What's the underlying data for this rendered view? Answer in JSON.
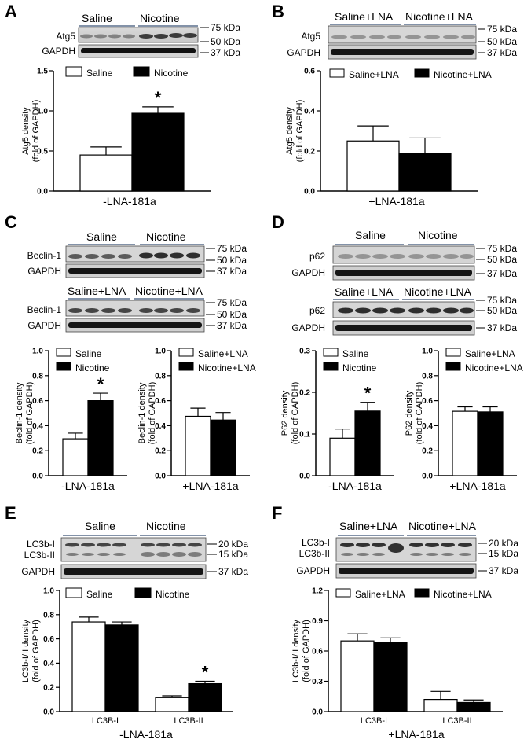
{
  "figure": {
    "panels": [
      {
        "letter": "A",
        "blots": [
          {
            "groups": [
              "Saline",
              "Nicotine"
            ],
            "bands": [
              "Atg5",
              "GAPDH"
            ],
            "markers": [
              "75 kDa",
              "50 kDa",
              "37 kDa"
            ]
          }
        ]
      },
      {
        "letter": "B",
        "blots": [
          {
            "groups": [
              "Saline+LNA",
              "Nicotine+LNA"
            ],
            "bands": [
              "Atg5",
              "GAPDH"
            ],
            "markers": [
              "75 kDa",
              "50 kDa",
              "37 kDa"
            ]
          }
        ]
      },
      {
        "letter": "C",
        "blots": [
          {
            "groups": [
              "Saline",
              "Nicotine"
            ],
            "bands": [
              "Beclin-1",
              "GAPDH"
            ],
            "markers": [
              "75 kDa",
              "50 kDa",
              "37 kDa"
            ]
          },
          {
            "groups": [
              "Saline+LNA",
              "Nicotine+LNA"
            ],
            "bands": [
              "Beclin-1",
              "GAPDH"
            ],
            "markers": [
              "75 kDa",
              "50 kDa",
              "37 kDa"
            ]
          }
        ]
      },
      {
        "letter": "D",
        "blots": [
          {
            "groups": [
              "Saline",
              "Nicotine"
            ],
            "bands": [
              "p62",
              "GAPDH"
            ],
            "markers": [
              "75 kDa",
              "50 kDa",
              "37 kDa"
            ]
          },
          {
            "groups": [
              "Saline+LNA",
              "Nicotine+LNA"
            ],
            "bands": [
              "p62",
              "GAPDH"
            ],
            "markers": [
              "75 kDa",
              "50 kDa",
              "37 kDa"
            ]
          }
        ]
      },
      {
        "letter": "E",
        "blots": [
          {
            "groups": [
              "Saline",
              "Nicotine"
            ],
            "bands": [
              "LC3b-I",
              "LC3b-II",
              "GAPDH"
            ],
            "markers": [
              "20 kDa",
              "15 kDa",
              "37 kDa"
            ]
          }
        ]
      },
      {
        "letter": "F",
        "blots": [
          {
            "groups": [
              "Saline+LNA",
              "Nicotine+LNA"
            ],
            "bands": [
              "LC3b-I",
              "LC3b-II",
              "GAPDH"
            ],
            "markers": [
              "20 kDa",
              "15 kDa",
              "37 kDa"
            ]
          }
        ]
      }
    ]
  },
  "chart_data": [
    {
      "panel": "A",
      "type": "bar",
      "title": "",
      "xlabel": "-LNA-181a",
      "ylabel": [
        "Atg5 density",
        "(fold of GAPDH)"
      ],
      "ylim": [
        0,
        1.5
      ],
      "yticks": [
        "0.0",
        "0.5",
        "1.0",
        "1.5"
      ],
      "legend": [
        "Saline",
        "Nicotine"
      ],
      "legend_position": "top",
      "categories": [
        ""
      ],
      "series": [
        {
          "name": "Saline",
          "values": [
            0.45
          ],
          "errors": [
            0.1
          ],
          "color": "#ffffff"
        },
        {
          "name": "Nicotine",
          "values": [
            0.97
          ],
          "errors": [
            0.08
          ],
          "color": "#000000"
        }
      ],
      "significance": [
        {
          "series": "Nicotine",
          "category": 0,
          "mark": "*"
        }
      ]
    },
    {
      "panel": "B",
      "type": "bar",
      "title": "",
      "xlabel": "+LNA-181a",
      "ylabel": [
        "Atg5 density",
        "(fold of GAPDH)"
      ],
      "ylim": [
        0,
        0.6
      ],
      "yticks": [
        "0.0",
        "0.2",
        "0.4",
        "0.6"
      ],
      "legend": [
        "Saline+LNA",
        "Nicotine+LNA"
      ],
      "legend_position": "top",
      "categories": [
        ""
      ],
      "series": [
        {
          "name": "Saline+LNA",
          "values": [
            0.25
          ],
          "errors": [
            0.075
          ],
          "color": "#ffffff"
        },
        {
          "name": "Nicotine+LNA",
          "values": [
            0.187
          ],
          "errors": [
            0.078
          ],
          "color": "#000000"
        }
      ],
      "significance": []
    },
    {
      "panel": "C-left",
      "type": "bar",
      "title": "",
      "xlabel": "-LNA-181a",
      "ylabel": [
        "Beclin-1 density",
        "(fold of GAPDH)"
      ],
      "ylim": [
        0,
        1.0
      ],
      "yticks": [
        "0.0",
        "0.2",
        "0.4",
        "0.6",
        "0.8",
        "1.0"
      ],
      "legend": [
        "Saline",
        "Nicotine"
      ],
      "legend_position": "top",
      "categories": [
        ""
      ],
      "series": [
        {
          "name": "Saline",
          "values": [
            0.295
          ],
          "errors": [
            0.045
          ],
          "color": "#ffffff"
        },
        {
          "name": "Nicotine",
          "values": [
            0.6
          ],
          "errors": [
            0.06
          ],
          "color": "#000000"
        }
      ],
      "significance": [
        {
          "series": "Nicotine",
          "category": 0,
          "mark": "*"
        }
      ]
    },
    {
      "panel": "C-right",
      "type": "bar",
      "title": "",
      "xlabel": "+LNA-181a",
      "ylabel": [
        "Beclin-1 density",
        "(fold of GAPDH)"
      ],
      "ylim": [
        0,
        1.0
      ],
      "yticks": [
        "0.0",
        "0.2",
        "0.4",
        "0.6",
        "0.8",
        "1.0"
      ],
      "legend": [
        "Saline+LNA",
        "Nicotine+LNA"
      ],
      "legend_position": "top",
      "categories": [
        ""
      ],
      "series": [
        {
          "name": "Saline+LNA",
          "values": [
            0.475
          ],
          "errors": [
            0.065
          ],
          "color": "#ffffff"
        },
        {
          "name": "Nicotine+LNA",
          "values": [
            0.445
          ],
          "errors": [
            0.06
          ],
          "color": "#000000"
        }
      ],
      "significance": []
    },
    {
      "panel": "D-left",
      "type": "bar",
      "title": "",
      "xlabel": "-LNA-181a",
      "ylabel": [
        "P62 density",
        "(fold of GAPDH)"
      ],
      "ylim": [
        0,
        0.3
      ],
      "yticks": [
        "0.0",
        "0.1",
        "0.2",
        "0.3"
      ],
      "legend": [
        "Saline",
        "Nicotine"
      ],
      "legend_position": "top",
      "categories": [
        ""
      ],
      "series": [
        {
          "name": "Saline",
          "values": [
            0.09
          ],
          "errors": [
            0.022
          ],
          "color": "#ffffff"
        },
        {
          "name": "Nicotine",
          "values": [
            0.155
          ],
          "errors": [
            0.021
          ],
          "color": "#000000"
        }
      ],
      "significance": [
        {
          "series": "Nicotine",
          "category": 0,
          "mark": "*"
        }
      ]
    },
    {
      "panel": "D-right",
      "type": "bar",
      "title": "",
      "xlabel": "+LNA-181a",
      "ylabel": [
        "P62 density",
        "(fold of GAPDH)"
      ],
      "ylim": [
        0,
        1.0
      ],
      "yticks": [
        "0.0",
        "0.2",
        "0.4",
        "0.6",
        "0.8",
        "1.0"
      ],
      "legend": [
        "Saline+LNA",
        "Nicotine+LNA"
      ],
      "legend_position": "top",
      "categories": [
        ""
      ],
      "series": [
        {
          "name": "Saline+LNA",
          "values": [
            0.515
          ],
          "errors": [
            0.035
          ],
          "color": "#ffffff"
        },
        {
          "name": "Nicotine+LNA",
          "values": [
            0.51
          ],
          "errors": [
            0.04
          ],
          "color": "#000000"
        }
      ],
      "significance": []
    },
    {
      "panel": "E",
      "type": "bar",
      "title": "",
      "xlabel": "-LNA-181a",
      "ylabel": [
        "LC3b-I/II density",
        "(fold of GAPDH)"
      ],
      "ylim": [
        0,
        1.0
      ],
      "yticks": [
        "0.0",
        "0.2",
        "0.4",
        "0.6",
        "0.8",
        "1.0"
      ],
      "legend": [
        "Saline",
        "Nicotine"
      ],
      "legend_position": "top",
      "categories": [
        "LC3B-I",
        "LC3B-II"
      ],
      "series": [
        {
          "name": "Saline",
          "values": [
            0.74,
            0.115
          ],
          "errors": [
            0.04,
            0.015
          ],
          "color": "#ffffff"
        },
        {
          "name": "Nicotine",
          "values": [
            0.715,
            0.23
          ],
          "errors": [
            0.025,
            0.02
          ],
          "color": "#000000"
        }
      ],
      "significance": [
        {
          "series": "Nicotine",
          "category": 1,
          "mark": "*"
        }
      ]
    },
    {
      "panel": "F",
      "type": "bar",
      "title": "",
      "xlabel": "+LNA-181a",
      "ylabel": [
        "LC3b-I/II density",
        "(fold of GAPDH)"
      ],
      "ylim": [
        0,
        1.2
      ],
      "yticks": [
        "0.0",
        "0.3",
        "0.6",
        "0.9",
        "1.2"
      ],
      "legend": [
        "Saline+LNA",
        "Nicotine+LNA"
      ],
      "legend_position": "top",
      "categories": [
        "LC3B-I",
        "LC3B-II"
      ],
      "series": [
        {
          "name": "Saline+LNA",
          "values": [
            0.7,
            0.12
          ],
          "errors": [
            0.07,
            0.08
          ],
          "color": "#ffffff"
        },
        {
          "name": "Nicotine+LNA",
          "values": [
            0.685,
            0.09
          ],
          "errors": [
            0.045,
            0.025
          ],
          "color": "#000000"
        }
      ],
      "significance": []
    }
  ]
}
